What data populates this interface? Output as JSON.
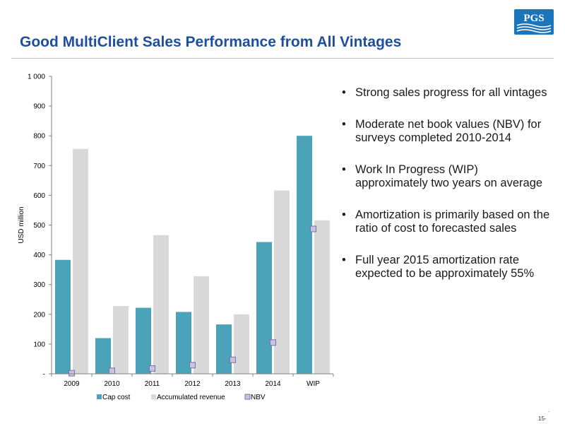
{
  "slide": {
    "title": "Good MultiClient Sales Performance from All Vintages",
    "logo_text": "PGS",
    "page_number": "15-",
    "tiny_mark": "-"
  },
  "colors": {
    "title": "#1f4e9c",
    "cap_cost": "#4aa3b8",
    "accumulated_revenue": "#d9d9d9",
    "nbv_fill": "#c8c3df",
    "nbv_stroke": "#7a6fa8",
    "logo": "#1b75bb"
  },
  "bullets": [
    "Strong sales progress for all vintages",
    "Moderate net book values (NBV) for surveys completed 2010-2014",
    "Work In Progress (WIP) approximately two years on average",
    "Amortization is primarily based on the ratio of cost to forecasted sales",
    "Full year 2015 amortization rate expected to be approximately 55%"
  ],
  "chart_data": {
    "type": "bar",
    "categories": [
      "2009",
      "2010",
      "2011",
      "2012",
      "2013",
      "2014",
      "WIP"
    ],
    "series": [
      {
        "name": "Cap cost",
        "kind": "bar",
        "values": [
          383,
          120,
          222,
          208,
          166,
          443,
          800
        ]
      },
      {
        "name": "Accumulated revenue",
        "kind": "bar",
        "values": [
          756,
          228,
          466,
          328,
          200,
          616,
          516
        ]
      },
      {
        "name": "NBV",
        "kind": "marker",
        "values": [
          2,
          10,
          18,
          29,
          47,
          105,
          487
        ]
      }
    ],
    "ylabel": "USD million",
    "ylim": [
      0,
      1000
    ],
    "y_ticks": [
      0,
      100,
      200,
      300,
      400,
      500,
      600,
      700,
      800,
      900,
      1000
    ],
    "y_tick_labels": [
      "-",
      "100",
      "200",
      "300",
      "400",
      "500",
      "600",
      "700",
      "800",
      "900",
      "1 000"
    ],
    "grid": false,
    "legend_position": "bottom-left"
  }
}
